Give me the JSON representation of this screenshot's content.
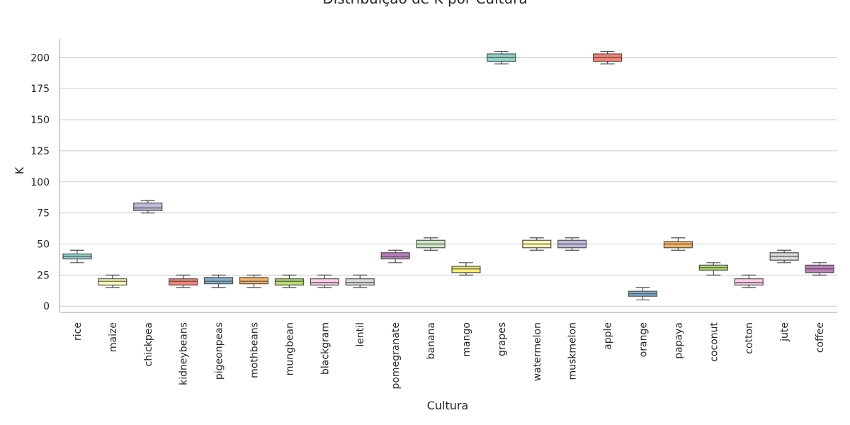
{
  "chart_data": {
    "type": "box",
    "title": "Distribuição de K por Cultura",
    "xlabel": "Cultura",
    "ylabel": "K",
    "ylim": [
      -5,
      215
    ],
    "yticks": [
      0,
      25,
      50,
      75,
      100,
      125,
      150,
      175,
      200
    ],
    "grid": "horizontal",
    "categories": [
      "rice",
      "maize",
      "chickpea",
      "kidneybeans",
      "pigeonpeas",
      "mothbeans",
      "mungbean",
      "blackgram",
      "lentil",
      "pomegranate",
      "banana",
      "mango",
      "grapes",
      "watermelon",
      "muskmelon",
      "apple",
      "orange",
      "papaya",
      "coconut",
      "cotton",
      "jute",
      "coffee"
    ],
    "boxes": [
      {
        "min": 35,
        "q1": 38,
        "median": 40,
        "q3": 42,
        "max": 45,
        "color": "#8dd3c7"
      },
      {
        "min": 15,
        "q1": 17,
        "median": 20,
        "q3": 22,
        "max": 25,
        "color": "#ffffb3"
      },
      {
        "min": 75,
        "q1": 77,
        "median": 79,
        "q3": 83,
        "max": 85,
        "color": "#bebada"
      },
      {
        "min": 15,
        "q1": 17,
        "median": 20,
        "q3": 22,
        "max": 25,
        "color": "#fb8072"
      },
      {
        "min": 15,
        "q1": 18,
        "median": 20,
        "q3": 23,
        "max": 25,
        "color": "#80b1d3"
      },
      {
        "min": 15,
        "q1": 18,
        "median": 20,
        "q3": 23,
        "max": 25,
        "color": "#fdb462"
      },
      {
        "min": 15,
        "q1": 17,
        "median": 20,
        "q3": 22,
        "max": 25,
        "color": "#b3de69"
      },
      {
        "min": 15,
        "q1": 17,
        "median": 19,
        "q3": 22,
        "max": 25,
        "color": "#fccde5"
      },
      {
        "min": 15,
        "q1": 17,
        "median": 19,
        "q3": 22,
        "max": 25,
        "color": "#d9d9d9"
      },
      {
        "min": 35,
        "q1": 38,
        "median": 40,
        "q3": 43,
        "max": 45,
        "color": "#bc80bd"
      },
      {
        "min": 45,
        "q1": 47,
        "median": 50,
        "q3": 53,
        "max": 55,
        "color": "#ccebc5"
      },
      {
        "min": 25,
        "q1": 27,
        "median": 30,
        "q3": 32,
        "max": 35,
        "color": "#ffed6f"
      },
      {
        "min": 195,
        "q1": 197,
        "median": 200,
        "q3": 203,
        "max": 205,
        "color": "#8dd3c7"
      },
      {
        "min": 45,
        "q1": 47,
        "median": 50,
        "q3": 53,
        "max": 55,
        "color": "#ffffb3"
      },
      {
        "min": 45,
        "q1": 47,
        "median": 50,
        "q3": 53,
        "max": 55,
        "color": "#bebada"
      },
      {
        "min": 195,
        "q1": 197,
        "median": 200,
        "q3": 203,
        "max": 205,
        "color": "#fb8072"
      },
      {
        "min": 5,
        "q1": 8,
        "median": 10,
        "q3": 12,
        "max": 15,
        "color": "#80b1d3"
      },
      {
        "min": 45,
        "q1": 47,
        "median": 50,
        "q3": 52,
        "max": 55,
        "color": "#fdb462"
      },
      {
        "min": 25,
        "q1": 29,
        "median": 31,
        "q3": 33,
        "max": 35,
        "color": "#b3de69"
      },
      {
        "min": 15,
        "q1": 17,
        "median": 19,
        "q3": 22,
        "max": 25,
        "color": "#fccde5"
      },
      {
        "min": 35,
        "q1": 37,
        "median": 40,
        "q3": 43,
        "max": 45,
        "color": "#d9d9d9"
      },
      {
        "min": 25,
        "q1": 27,
        "median": 30,
        "q3": 33,
        "max": 35,
        "color": "#bc80bd"
      }
    ]
  }
}
